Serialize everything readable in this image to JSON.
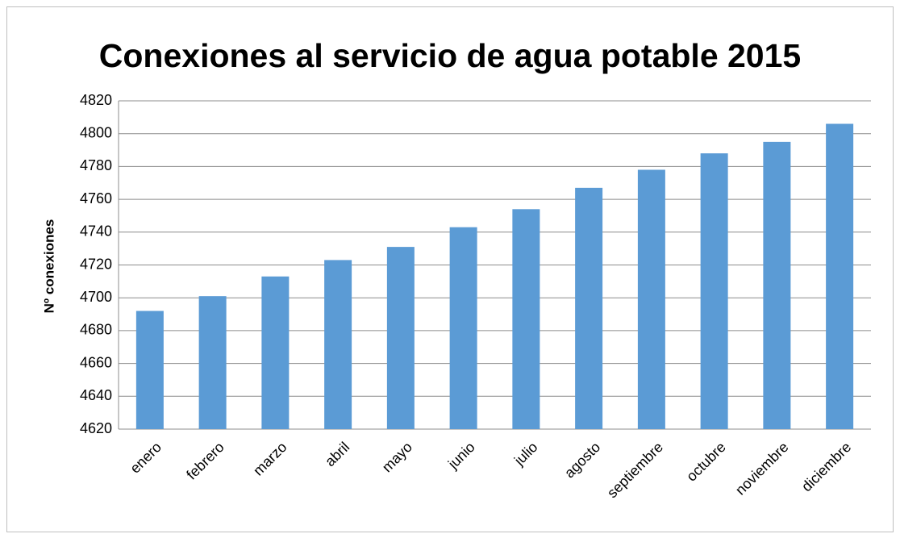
{
  "chart_data": {
    "type": "bar",
    "title": "Conexiones al servicio de agua potable 2015",
    "y_label": "Nº conexiones",
    "categories": [
      "enero",
      "febrero",
      "marzo",
      "abril",
      "mayo",
      "junio",
      "julio",
      "agosto",
      "septiembre",
      "octubre",
      "noviembre",
      "diciembre"
    ],
    "values": [
      4692,
      4701,
      4713,
      4723,
      4731,
      4743,
      4754,
      4767,
      4778,
      4788,
      4795,
      4806
    ],
    "color": "#5b9bd5",
    "ylim": [
      4620,
      4820
    ],
    "yticks": [
      4620,
      4640,
      4660,
      4680,
      4700,
      4720,
      4740,
      4760,
      4780,
      4800,
      4820
    ],
    "grid": true
  }
}
